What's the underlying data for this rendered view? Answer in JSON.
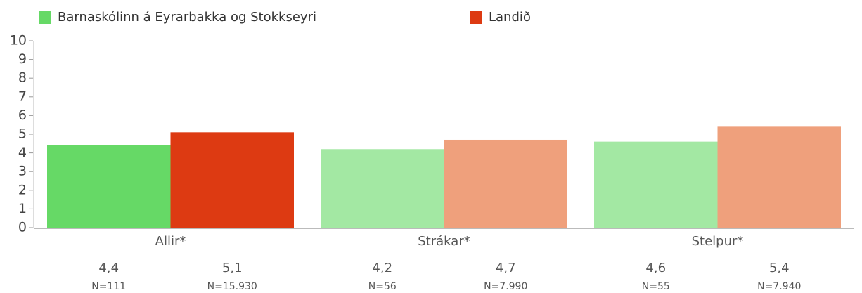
{
  "chart_data": {
    "type": "bar",
    "categories": [
      "Allir*",
      "Strákar*",
      "Stelpur*"
    ],
    "series": [
      {
        "name": "Barnaskólinn á Eyrarbakka og Stokkseyri",
        "color": "#66d966",
        "colors": [
          "#66d966",
          "#a3e8a3",
          "#a3e8a3"
        ],
        "values": [
          4.4,
          4.2,
          4.6
        ],
        "value_labels": [
          "4,4",
          "4,2",
          "4,6"
        ],
        "n_labels": [
          "N=111",
          "N=56",
          "N=55"
        ]
      },
      {
        "name": "Landið",
        "color": "#dd3a12",
        "colors": [
          "#dd3a12",
          "#efa07c",
          "#efa07c"
        ],
        "values": [
          5.1,
          4.7,
          5.4
        ],
        "value_labels": [
          "5,1",
          "4,7",
          "5,4"
        ],
        "n_labels": [
          "N=15.930",
          "N=7.990",
          "N=7.940"
        ]
      }
    ],
    "ylim": [
      0,
      10
    ],
    "yticks": [
      0,
      1,
      2,
      3,
      4,
      5,
      6,
      7,
      8,
      9,
      10
    ],
    "legend": "top"
  }
}
